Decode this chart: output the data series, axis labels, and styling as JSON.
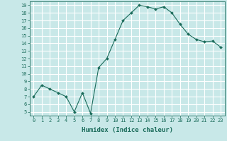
{
  "x": [
    0,
    1,
    2,
    3,
    4,
    5,
    6,
    7,
    8,
    9,
    10,
    11,
    12,
    13,
    14,
    15,
    16,
    17,
    18,
    19,
    20,
    21,
    22,
    23
  ],
  "y": [
    7.0,
    8.5,
    8.0,
    7.5,
    7.0,
    5.0,
    7.5,
    4.8,
    10.8,
    12.0,
    14.5,
    17.0,
    18.0,
    19.0,
    18.8,
    18.5,
    18.8,
    18.0,
    16.5,
    15.2,
    14.5,
    14.2,
    14.3,
    13.5
  ],
  "xlabel": "Humidex (Indice chaleur)",
  "xlim": [
    -0.5,
    23.5
  ],
  "ylim": [
    4.5,
    19.5
  ],
  "yticks": [
    5,
    6,
    7,
    8,
    9,
    10,
    11,
    12,
    13,
    14,
    15,
    16,
    17,
    18,
    19
  ],
  "xticks": [
    0,
    1,
    2,
    3,
    4,
    5,
    6,
    7,
    8,
    9,
    10,
    11,
    12,
    13,
    14,
    15,
    16,
    17,
    18,
    19,
    20,
    21,
    22,
    23
  ],
  "xtick_labels": [
    "0",
    "1",
    "2",
    "3",
    "4",
    "5",
    "6",
    "7",
    "8",
    "9",
    "10",
    "11",
    "12",
    "13",
    "14",
    "15",
    "16",
    "17",
    "18",
    "19",
    "20",
    "21",
    "22",
    "23"
  ],
  "line_color": "#1a6b5a",
  "marker_color": "#1a6b5a",
  "bg_color": "#c8e8e8",
  "grid_color": "#ffffff",
  "axis_color": "#1a6b5a",
  "tick_color": "#1a6b5a",
  "label_color": "#1a6b5a",
  "xlabel_fontsize": 6.5,
  "tick_fontsize": 5.0
}
